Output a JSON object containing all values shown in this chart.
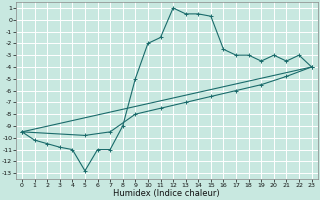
{
  "xlabel": "Humidex (Indice chaleur)",
  "bg_color": "#c8e8e0",
  "grid_color": "#ffffff",
  "line_color": "#1a6b6b",
  "xlim": [
    -0.5,
    23.5
  ],
  "ylim": [
    -13.5,
    1.5
  ],
  "xticks": [
    0,
    1,
    2,
    3,
    4,
    5,
    6,
    7,
    8,
    9,
    10,
    11,
    12,
    13,
    14,
    15,
    16,
    17,
    18,
    19,
    20,
    21,
    22,
    23
  ],
  "yticks": [
    1,
    0,
    -1,
    -2,
    -3,
    -4,
    -5,
    -6,
    -7,
    -8,
    -9,
    -10,
    -11,
    -12,
    -13
  ],
  "line1_x": [
    0,
    1,
    2,
    3,
    4,
    5,
    6,
    7,
    8,
    9,
    10,
    11,
    12,
    13,
    14,
    15,
    16,
    17,
    18,
    19,
    20,
    21,
    22,
    23
  ],
  "line1_y": [
    -9.5,
    -10.2,
    -10.5,
    -10.8,
    -11.0,
    -12.8,
    -11.0,
    -11.0,
    -9.0,
    -5.0,
    -2.0,
    -1.5,
    1.0,
    0.5,
    0.5,
    0.3,
    -2.5,
    -3.0,
    -3.0,
    -3.5,
    -3.0,
    -3.5,
    -3.0,
    -4.0
  ],
  "line2_x": [
    0,
    23
  ],
  "line2_y": [
    -9.5,
    -4.0
  ],
  "line3_x": [
    0,
    5,
    7,
    9,
    11,
    13,
    15,
    17,
    19,
    21,
    23
  ],
  "line3_y": [
    -9.5,
    -9.8,
    -9.5,
    -8.0,
    -7.5,
    -7.0,
    -6.5,
    -6.0,
    -5.5,
    -4.8,
    -4.0
  ],
  "xlabel_fontsize": 6,
  "tick_fontsize": 4.5
}
